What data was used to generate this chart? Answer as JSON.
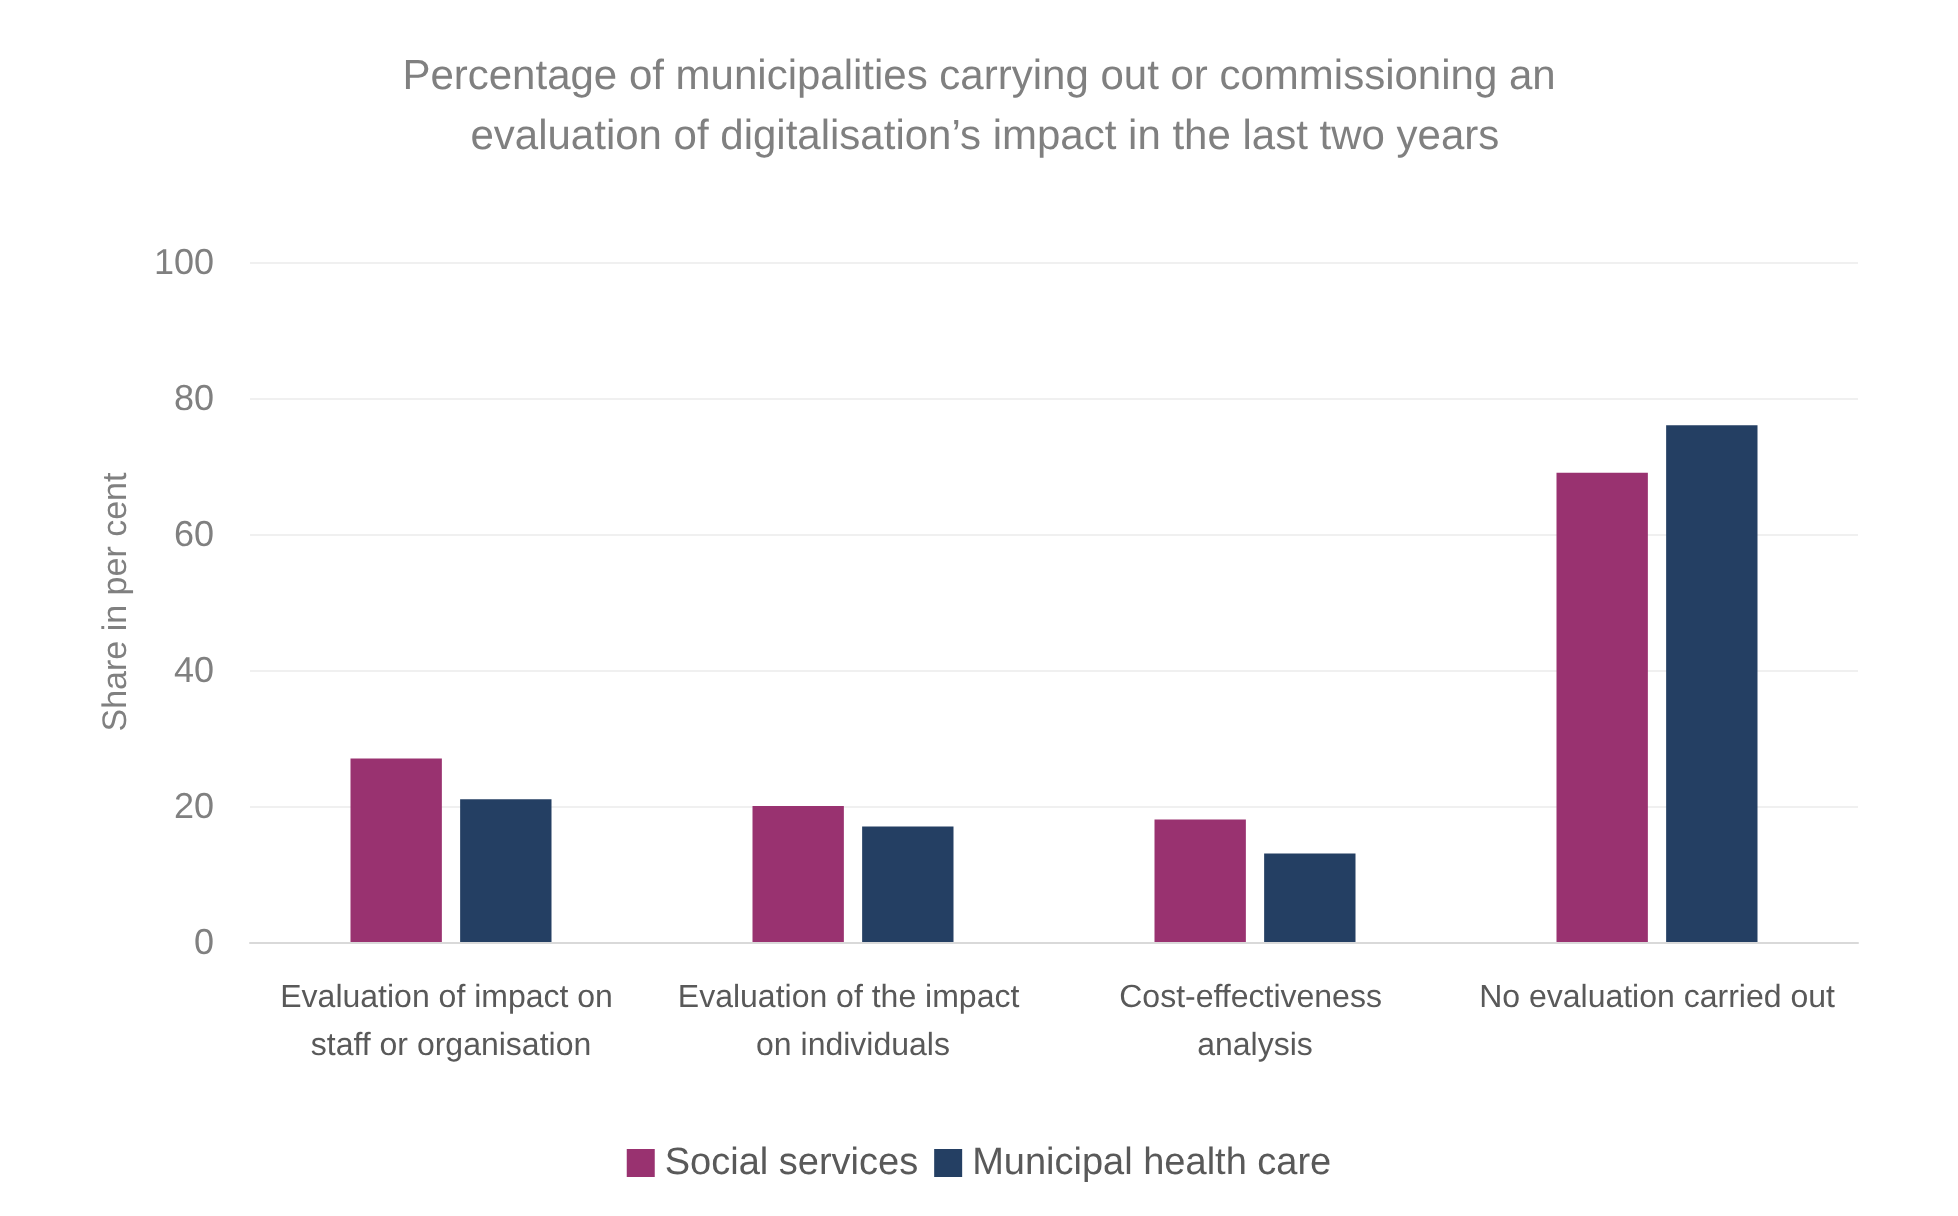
{
  "chart_data": {
    "type": "bar",
    "title": "Percentage of municipalities carrying out or commissioning an evaluation of digitalisation’s impact in the last two years",
    "ylabel": "Share in per cent",
    "categories": [
      "Evaluation of impact on staff or organisation",
      "Evaluation of the impact on individuals",
      "Cost-effectiveness analysis",
      "No evaluation carried out"
    ],
    "series": [
      {
        "name": "Social services",
        "color": "#993270",
        "values": [
          27,
          20,
          18,
          69
        ]
      },
      {
        "name": "Municipal health care",
        "color": "#243f63",
        "values": [
          21,
          17,
          13,
          76
        ]
      }
    ],
    "ylim": [
      0,
      100
    ],
    "yticks": [
      0,
      20,
      40,
      60,
      80,
      100
    ],
    "grid": "y",
    "legend": "bottom"
  }
}
